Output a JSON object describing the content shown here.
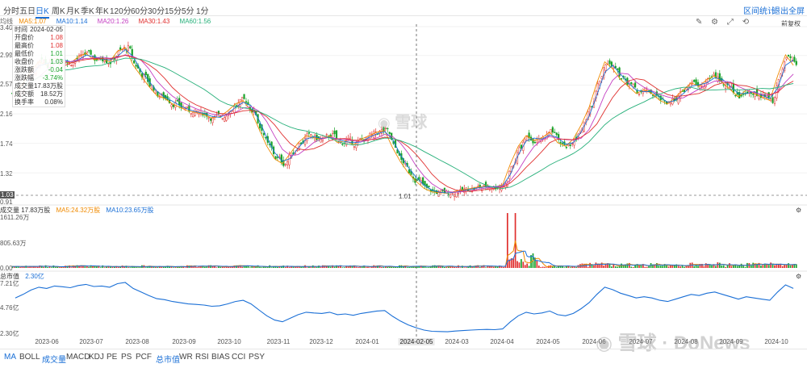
{
  "toolbar": {
    "periods": [
      "分时",
      "五日",
      "日K",
      "周K",
      "月K",
      "季K",
      "年K",
      "120分",
      "60分",
      "30分",
      "15分",
      "5分",
      "1分"
    ],
    "active_period": "日K",
    "right_links": [
      "区间统计",
      "退出全屏"
    ],
    "icons": [
      "draw-icon",
      "settings-icon",
      "fullscreen-icon",
      "zoom-in-icon",
      "zoom-out-icon",
      "refresh-icon"
    ],
    "adjust_label": "前复权"
  },
  "price_panel": {
    "label": "均线",
    "ma": [
      {
        "name": "MA5",
        "value": "1.07",
        "color": "#f08a00"
      },
      {
        "name": "MA10",
        "value": "1.14",
        "color": "#1a6fd6"
      },
      {
        "name": "MA20",
        "value": "1.26",
        "color": "#c43fc2"
      },
      {
        "name": "MA30",
        "value": "1.43",
        "color": "#e0302f"
      },
      {
        "name": "MA60",
        "value": "1.56",
        "color": "#27b07a"
      }
    ],
    "y_ticks": [
      "3.40",
      "2.99",
      "2.57",
      "2.16",
      "1.74",
      "1.32",
      "1.03",
      "0.91"
    ],
    "crosshair_price": "1.03",
    "low_marker": "1.01"
  },
  "tooltip": {
    "rows": [
      {
        "label": "时间",
        "value": "2024-02-05",
        "tone": "n"
      },
      {
        "label": "开盘价",
        "value": "1.08",
        "tone": "r"
      },
      {
        "label": "最高价",
        "value": "1.08",
        "tone": "r"
      },
      {
        "label": "最低价",
        "value": "1.01",
        "tone": "g"
      },
      {
        "label": "收盘价",
        "value": "1.03",
        "tone": "g"
      },
      {
        "label": "涨跌额",
        "value": "-0.04",
        "tone": "g"
      },
      {
        "label": "涨跌幅",
        "value": "-3.74%",
        "tone": "g"
      },
      {
        "label": "成交量",
        "value": "17.83万股",
        "tone": "n"
      },
      {
        "label": "成交额",
        "value": "18.52万",
        "tone": "n"
      },
      {
        "label": "换手率",
        "value": "0.08%",
        "tone": "n"
      }
    ]
  },
  "volume_panel": {
    "label": "成交量 17.83万股",
    "ma5": "MA5:24.32万股",
    "ma10": "MA10:23.65万股",
    "y_ticks": [
      "1611.26万",
      "805.63万",
      "0.00"
    ]
  },
  "mcap_panel": {
    "label": "总市值",
    "value": "2.30亿",
    "y_ticks": [
      "7.21亿",
      "4.76亿",
      "2.30亿"
    ]
  },
  "x_axis": {
    "labels": [
      "2023-06",
      "2023-07",
      "2023-08",
      "2023-09",
      "2023-10",
      "2023-11",
      "2023-12",
      "2024-01",
      "2024-02-05",
      "2024-03",
      "2024-04",
      "2024-05",
      "2024-06",
      "2024-07",
      "2024-08",
      "2024-09",
      "2024-10"
    ],
    "highlight": "2024-02-05"
  },
  "indicators": {
    "items": [
      "MA",
      "BOLL",
      "成交量",
      "MACD",
      "KDJ",
      "PE",
      "PS",
      "PCF",
      "总市值",
      "WR",
      "RSI",
      "BIAS",
      "CCI",
      "PSY"
    ],
    "active": [
      "MA",
      "成交量",
      "总市值"
    ]
  },
  "watermark": {
    "center": "雪球",
    "bottom": "雪球 · DoNews"
  },
  "colors": {
    "up": "#e0302f",
    "down": "#1aa32b",
    "accent": "#1a6fd6",
    "mcap": "#1a6fd6"
  },
  "chart_data": {
    "type": "candlestick",
    "close_series": [
      2.45,
      2.6,
      2.78,
      2.9,
      2.85,
      2.95,
      2.92,
      2.88,
      2.97,
      3.02,
      2.93,
      2.95,
      2.9,
      3.05,
      3.1,
      2.85,
      2.7,
      2.55,
      2.42,
      2.38,
      2.3,
      2.25,
      2.2,
      2.18,
      2.15,
      2.1,
      2.12,
      2.2,
      2.3,
      2.35,
      2.2,
      1.95,
      1.7,
      1.52,
      1.45,
      1.6,
      1.75,
      1.85,
      1.82,
      1.8,
      1.85,
      1.75,
      1.78,
      1.72,
      1.8,
      1.85,
      1.9,
      1.92,
      1.68,
      1.48,
      1.32,
      1.2,
      1.1,
      1.05,
      1.04,
      1.03,
      1.06,
      1.08,
      1.1,
      1.12,
      1.13,
      1.12,
      1.15,
      1.45,
      1.7,
      1.85,
      1.78,
      1.82,
      1.9,
      1.75,
      1.7,
      1.8,
      2.0,
      2.25,
      2.6,
      2.9,
      2.8,
      2.65,
      2.55,
      2.45,
      2.5,
      2.45,
      2.35,
      2.3,
      2.4,
      2.5,
      2.6,
      2.55,
      2.65,
      2.7,
      2.6,
      2.5,
      2.4,
      2.5,
      2.45,
      2.4,
      2.35,
      2.7,
      3.0,
      2.85
    ],
    "y_range": [
      0.91,
      3.4
    ],
    "volume_peak": "1611.26万",
    "mcap_range": [
      "2.30亿",
      "7.21亿"
    ]
  }
}
